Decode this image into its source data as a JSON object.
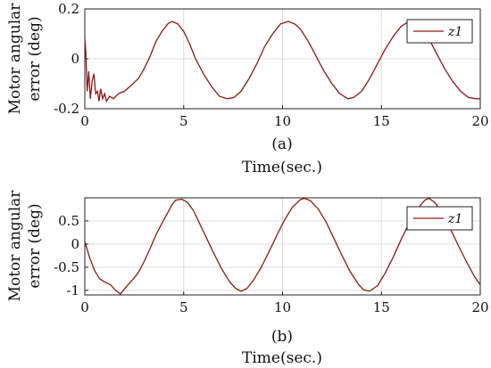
{
  "colors": {
    "line": "#8b1a1a",
    "grid": "#dcdcdc",
    "axis": "#222222"
  },
  "chart_data": [
    {
      "type": "line",
      "caption": "(a)",
      "xlabel": "Time(sec.)",
      "ylabel_line1": "Motor angular",
      "ylabel_line2": "error (deg)",
      "xlim": [
        0,
        20
      ],
      "ylim": [
        -0.2,
        0.2
      ],
      "xticks": [
        0,
        5,
        10,
        15,
        20
      ],
      "yticks": [
        -0.2,
        0,
        0.2
      ],
      "ytick_labels": [
        "-0.2",
        "0",
        "0.2"
      ],
      "grid": true,
      "legend_position": "top-right",
      "series": [
        {
          "name": "z1",
          "x": [
            0,
            0.05,
            0.12,
            0.2,
            0.28,
            0.37,
            0.46,
            0.55,
            0.64,
            0.72,
            0.8,
            0.9,
            1.0,
            1.1,
            1.25,
            1.45,
            1.7,
            2.0,
            2.3,
            2.7,
            3.0,
            3.3,
            3.6,
            3.9,
            4.2,
            4.4,
            4.7,
            5.0,
            5.3,
            5.6,
            6.0,
            6.4,
            6.8,
            7.2,
            7.55,
            7.9,
            8.3,
            8.7,
            9.1,
            9.5,
            9.9,
            10.3,
            10.6,
            10.9,
            11.3,
            11.7,
            12.1,
            12.5,
            12.9,
            13.3,
            13.6,
            14.0,
            14.4,
            14.8,
            15.2,
            15.6,
            16.0,
            16.4,
            16.8,
            17.1,
            17.4,
            17.8,
            18.2,
            18.6,
            19.0,
            19.4,
            19.8,
            20.0
          ],
          "y": [
            0.08,
            0.03,
            -0.13,
            -0.05,
            -0.16,
            -0.09,
            -0.06,
            -0.14,
            -0.13,
            -0.17,
            -0.12,
            -0.16,
            -0.14,
            -0.17,
            -0.15,
            -0.16,
            -0.14,
            -0.13,
            -0.11,
            -0.08,
            -0.04,
            0.01,
            0.07,
            0.11,
            0.14,
            0.15,
            0.14,
            0.11,
            0.06,
            0.0,
            -0.06,
            -0.11,
            -0.15,
            -0.16,
            -0.155,
            -0.13,
            -0.08,
            -0.02,
            0.05,
            0.1,
            0.14,
            0.15,
            0.14,
            0.12,
            0.07,
            0.01,
            -0.05,
            -0.1,
            -0.14,
            -0.16,
            -0.155,
            -0.13,
            -0.08,
            -0.02,
            0.04,
            0.09,
            0.13,
            0.15,
            0.14,
            0.12,
            0.08,
            0.02,
            -0.04,
            -0.09,
            -0.13,
            -0.155,
            -0.16,
            -0.16
          ]
        }
      ]
    },
    {
      "type": "line",
      "caption": "(b)",
      "xlabel": "Time(sec.)",
      "ylabel_line1": "Motor angular",
      "ylabel_line2": "error (deg)",
      "xlim": [
        0,
        20
      ],
      "ylim": [
        -1.1,
        1.0
      ],
      "xticks": [
        0,
        5,
        10,
        15,
        20
      ],
      "yticks": [
        -1,
        -0.5,
        0,
        0.5
      ],
      "ytick_labels": [
        "-1",
        "-0.5",
        "0",
        "0.5"
      ],
      "grid": true,
      "legend_position": "top-right",
      "series": [
        {
          "name": "z1",
          "x": [
            0,
            0.25,
            0.5,
            0.75,
            1.0,
            1.3,
            1.55,
            1.8,
            2.1,
            2.4,
            2.7,
            3.0,
            3.3,
            3.6,
            3.9,
            4.2,
            4.4,
            4.6,
            4.9,
            5.2,
            5.5,
            5.8,
            6.1,
            6.5,
            6.9,
            7.3,
            7.6,
            7.9,
            8.2,
            8.5,
            8.9,
            9.3,
            9.7,
            10.1,
            10.5,
            10.9,
            11.1,
            11.4,
            11.8,
            12.2,
            12.6,
            13.0,
            13.4,
            13.8,
            14.1,
            14.4,
            14.8,
            15.2,
            15.6,
            16.0,
            16.4,
            16.8,
            17.2,
            17.4,
            17.7,
            18.1,
            18.5,
            18.9,
            19.3,
            19.7,
            20.0
          ],
          "y": [
            0.05,
            -0.3,
            -0.58,
            -0.75,
            -0.82,
            -0.88,
            -1.0,
            -1.08,
            -0.92,
            -0.78,
            -0.62,
            -0.38,
            -0.1,
            0.2,
            0.45,
            0.68,
            0.85,
            0.95,
            0.97,
            0.9,
            0.72,
            0.45,
            0.18,
            -0.18,
            -0.52,
            -0.8,
            -0.95,
            -1.02,
            -0.96,
            -0.8,
            -0.52,
            -0.18,
            0.18,
            0.52,
            0.8,
            0.96,
            0.99,
            0.94,
            0.76,
            0.48,
            0.12,
            -0.24,
            -0.58,
            -0.85,
            -0.99,
            -1.02,
            -0.9,
            -0.62,
            -0.28,
            0.1,
            0.45,
            0.75,
            0.95,
            0.99,
            0.9,
            0.66,
            0.32,
            -0.04,
            -0.38,
            -0.7,
            -0.88
          ]
        }
      ]
    }
  ]
}
